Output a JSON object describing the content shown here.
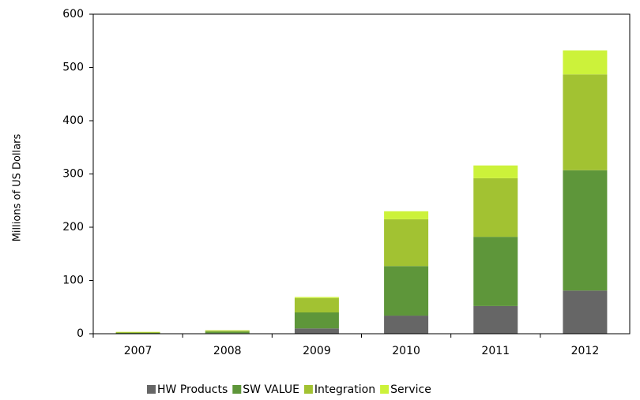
{
  "chart_data": {
    "type": "bar",
    "stacked": true,
    "y_label": "Millions of US Dollars",
    "categories": [
      "2007",
      "2008",
      "2009",
      "2010",
      "2011",
      "2012"
    ],
    "series": [
      {
        "name": "HW Products",
        "color": "#666666",
        "values": [
          0.5,
          1,
          10,
          34,
          52,
          81
        ]
      },
      {
        "name": "SW VALUE",
        "color": "#5e963a",
        "values": [
          1,
          3,
          30,
          93,
          130,
          226
        ]
      },
      {
        "name": "Integration",
        "color": "#a2c232",
        "values": [
          1.5,
          2,
          27,
          88,
          110,
          180
        ]
      },
      {
        "name": "Service",
        "color": "#ccf23a",
        "values": [
          0.5,
          0.5,
          2,
          15,
          24,
          45
        ]
      }
    ],
    "ylim": [
      0,
      600
    ],
    "yticks": [
      0,
      100,
      200,
      300,
      400,
      500,
      600
    ],
    "legend": "bottom"
  }
}
